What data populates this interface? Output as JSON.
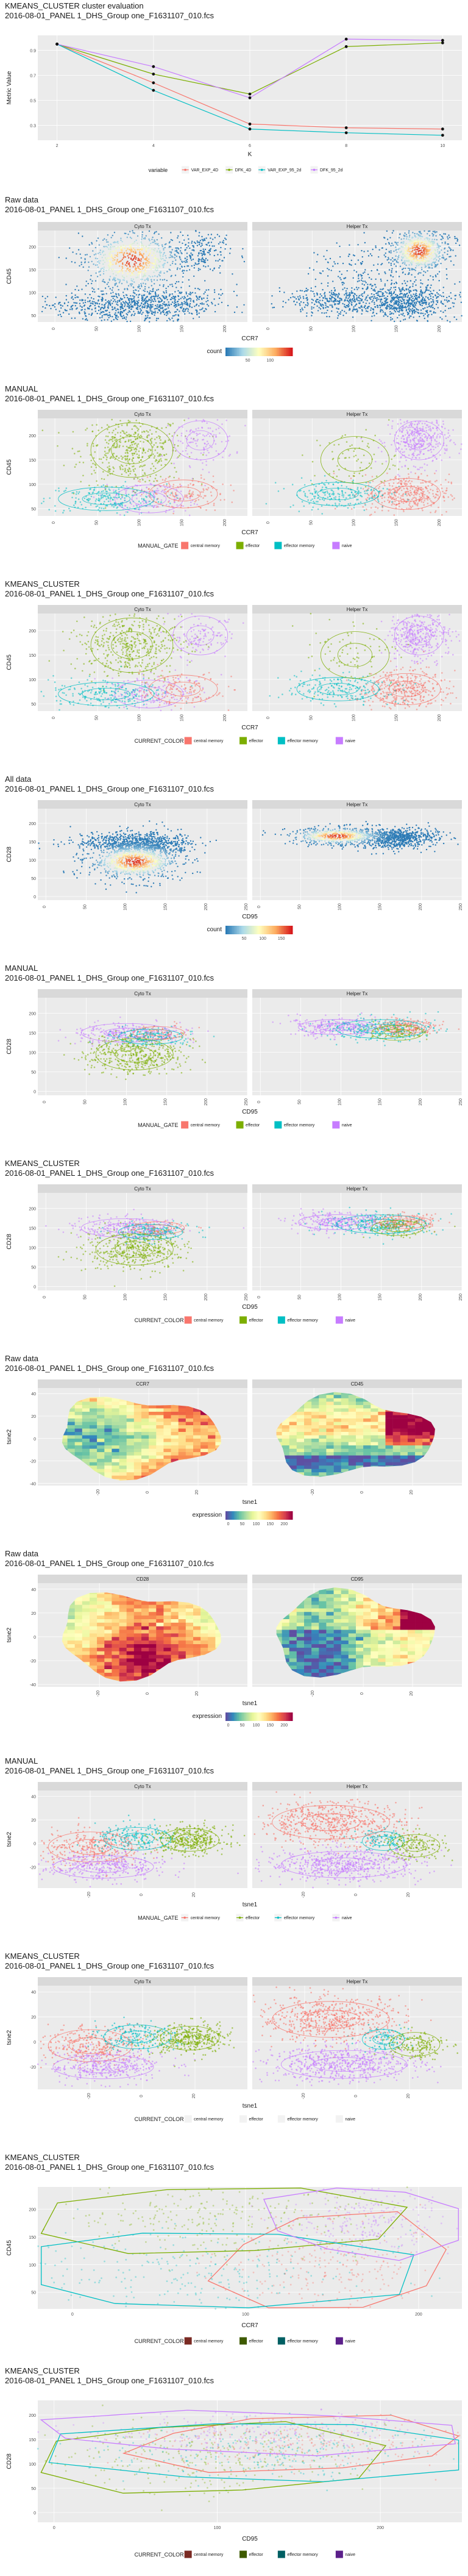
{
  "theme": {
    "panel_bg": "#ebebeb",
    "strip_bg": "#d9d9d9",
    "grid": "#ffffff",
    "text": "#1a1a1a",
    "axis_text": "#4d4d4d"
  },
  "palettes": {
    "groups4": [
      "#f8766d",
      "#7cae00",
      "#00bfc4",
      "#c77cff"
    ],
    "groups4_dark": [
      "#7a2a23",
      "#3e5a00",
      "#005f63",
      "#5b1f8a"
    ],
    "metrics": [
      "#f8766d",
      "#7cae00",
      "#00bfc4",
      "#c77cff"
    ],
    "count": [
      "#2c7bb6",
      "#abd9e9",
      "#ffffbf",
      "#fdae61",
      "#d7191c"
    ],
    "expression": [
      "#5e4fa2",
      "#3288bd",
      "#66c2a5",
      "#abdda4",
      "#e6f598",
      "#ffffbf",
      "#fee08b",
      "#fdae61",
      "#f46d43",
      "#d53e4f",
      "#9e0142"
    ]
  },
  "charts": [
    {
      "id": "kmeans-eval",
      "type": "line",
      "title": [
        "KMEANS_CLUSTER cluster evaluation",
        "2016-08-01_PANEL 1_DHS_Group one_F1631107_010.fcs"
      ],
      "xlabel": "K",
      "ylabel": "Metric Value",
      "xticks": [
        2,
        4,
        6,
        8,
        10
      ],
      "yticks": [
        0.3,
        0.5,
        0.7,
        0.9
      ],
      "xlim": [
        1.6,
        10.4
      ],
      "ylim": [
        0.18,
        1.02
      ],
      "legend": {
        "title": "variable",
        "labels": [
          "VAR_EXP_4D",
          "DFK_4D",
          "VAR_EXP_95_2d",
          "DFK_95_2d"
        ]
      },
      "x": [
        2,
        4,
        6,
        8,
        10
      ],
      "series": [
        {
          "name": "VAR_EXP_4D",
          "values": [
            0.95,
            0.64,
            0.31,
            0.28,
            0.27
          ]
        },
        {
          "name": "DFK_4D",
          "values": [
            0.95,
            0.71,
            0.55,
            0.93,
            0.96
          ]
        },
        {
          "name": "VAR_EXP_95_2d",
          "values": [
            0.95,
            0.58,
            0.27,
            0.24,
            0.22
          ]
        },
        {
          "name": "DFK_95_2d",
          "values": [
            0.95,
            0.77,
            0.52,
            0.99,
            0.98
          ]
        }
      ]
    },
    {
      "id": "raw-ccr7-cd45",
      "type": "scatter-density",
      "title": [
        "Raw data",
        "2016-08-01_PANEL 1_DHS_Group one_F1631107_010.fcs"
      ],
      "xlabel": "CCR7",
      "ylabel": "CD45",
      "facets": [
        "Cyto Tx",
        "Helper Tx"
      ],
      "xticks": [
        0,
        50,
        100,
        150,
        200
      ],
      "yticks": [
        50,
        100,
        150,
        200
      ],
      "xlim": [
        -20,
        225
      ],
      "ylim": [
        35,
        235
      ],
      "legend": {
        "type": "colorbar",
        "title": "count",
        "ticks": [
          50,
          100
        ],
        "range": [
          0,
          150
        ],
        "palette": "count"
      }
    },
    {
      "id": "manual-ccr7-cd45",
      "type": "scatter-groups",
      "title": [
        "MANUAL",
        "2016-08-01_PANEL 1_DHS_Group one_F1631107_010.fcs"
      ],
      "xlabel": "CCR7",
      "ylabel": "CD45",
      "facets": [
        "Cyto Tx",
        "Helper Tx"
      ],
      "xticks": [
        0,
        50,
        100,
        150,
        200
      ],
      "yticks": [
        50,
        100,
        150,
        200
      ],
      "xlim": [
        -20,
        225
      ],
      "ylim": [
        35,
        235
      ],
      "legend": {
        "title": "MANUAL_GATE",
        "labels": [
          "central memory",
          "effector",
          "effector memory",
          "naive"
        ]
      }
    },
    {
      "id": "kmeans-ccr7-cd45",
      "type": "scatter-groups",
      "title": [
        "KMEANS_CLUSTER",
        "2016-08-01_PANEL 1_DHS_Group one_F1631107_010.fcs"
      ],
      "xlabel": "CCR7",
      "ylabel": "CD45",
      "facets": [
        "Cyto Tx",
        "Helper Tx"
      ],
      "xticks": [
        0,
        50,
        100,
        150,
        200
      ],
      "yticks": [
        50,
        100,
        150,
        200
      ],
      "xlim": [
        -20,
        225
      ],
      "ylim": [
        35,
        235
      ],
      "legend": {
        "title": "CURRENT_COLOR",
        "labels": [
          "central memory",
          "effector",
          "effector memory",
          "naive"
        ]
      }
    },
    {
      "id": "all-cd95-cd28",
      "type": "scatter-density",
      "title": [
        "All data",
        "2016-08-01_PANEL 1_DHS_Group one_F1631107_010.fcs"
      ],
      "xlabel": "CD95",
      "ylabel": "CD28",
      "facets": [
        "Cyto Tx",
        "Helper Tx"
      ],
      "xticks": [
        0,
        50,
        100,
        150,
        200,
        250
      ],
      "yticks": [
        0,
        50,
        100,
        150,
        200
      ],
      "xlim": [
        -10,
        250
      ],
      "ylim": [
        -10,
        240
      ],
      "legend": {
        "type": "colorbar",
        "title": "count",
        "ticks": [
          50,
          100,
          150
        ],
        "range": [
          0,
          180
        ],
        "palette": "count"
      }
    },
    {
      "id": "manual-cd95-cd28",
      "type": "scatter-groups",
      "title": [
        "MANUAL",
        "2016-08-01_PANEL 1_DHS_Group one_F1631107_010.fcs"
      ],
      "xlabel": "CD95",
      "ylabel": "CD28",
      "facets": [
        "Cyto Tx",
        "Helper Tx"
      ],
      "xticks": [
        0,
        50,
        100,
        150,
        200,
        250
      ],
      "yticks": [
        0,
        50,
        100,
        150,
        200
      ],
      "xlim": [
        -10,
        250
      ],
      "ylim": [
        -10,
        240
      ],
      "legend": {
        "title": "MANUAL_GATE",
        "labels": [
          "central memory",
          "effector",
          "effector memory",
          "naive"
        ]
      }
    },
    {
      "id": "kmeans-cd95-cd28",
      "type": "scatter-groups",
      "title": [
        "KMEANS_CLUSTER",
        "2016-08-01_PANEL 1_DHS_Group one_F1631107_010.fcs"
      ],
      "xlabel": "CD95",
      "ylabel": "CD28",
      "facets": [
        "Cyto Tx",
        "Helper Tx"
      ],
      "xticks": [
        0,
        50,
        100,
        150,
        200,
        250
      ],
      "yticks": [
        0,
        50,
        100,
        150,
        200
      ],
      "xlim": [
        -10,
        250
      ],
      "ylim": [
        -10,
        240
      ],
      "legend": {
        "title": "CURRENT_COLOR",
        "labels": [
          "central memory",
          "effector",
          "effector memory",
          "naive"
        ]
      }
    },
    {
      "id": "raw-tsne-ccr7-cd45",
      "type": "tsne-expression",
      "title": [
        "Raw data",
        "2016-08-01_PANEL 1_DHS_Group one_F1631107_010.fcs"
      ],
      "xlabel": "tsne1",
      "ylabel": "tsne2",
      "facets": [
        "CCR7",
        "CD45"
      ],
      "xticks": [
        -20,
        0,
        20
      ],
      "yticks": [
        -40,
        -20,
        0,
        20,
        40
      ],
      "xlim": [
        -45,
        40
      ],
      "ylim": [
        -42,
        45
      ],
      "legend": {
        "type": "colorbar",
        "title": "expression",
        "ticks": [
          0,
          50,
          100,
          150,
          200
        ],
        "range": [
          -10,
          230
        ],
        "palette": "expression"
      }
    },
    {
      "id": "raw-tsne-cd28-cd95",
      "type": "tsne-expression",
      "title": [
        "Raw data",
        "2016-08-01_PANEL 1_DHS_Group one_F1631107_010.fcs"
      ],
      "xlabel": "tsne1",
      "ylabel": "tsne2",
      "facets": [
        "CD28",
        "CD95"
      ],
      "xticks": [
        -20,
        0,
        20
      ],
      "yticks": [
        -40,
        -20,
        0,
        20,
        40
      ],
      "xlim": [
        -45,
        40
      ],
      "ylim": [
        -42,
        45
      ],
      "legend": {
        "type": "colorbar",
        "title": "expression",
        "ticks": [
          0,
          50,
          100,
          150,
          200
        ],
        "range": [
          -10,
          230
        ],
        "palette": "expression"
      }
    },
    {
      "id": "manual-tsne",
      "type": "tsne-groups",
      "title": [
        "MANUAL",
        "2016-08-01_PANEL 1_DHS_Group one_F1631107_010.fcs"
      ],
      "xlabel": "tsne1",
      "ylabel": "tsne2",
      "facets": [
        "Cyto Tx",
        "Helper Tx"
      ],
      "xticks": [
        -20,
        0,
        20
      ],
      "yticks": [
        -20,
        0,
        20,
        40
      ],
      "xlim": [
        -40,
        40
      ],
      "ylim": [
        -38,
        45
      ],
      "legend": {
        "title": "MANUAL_GATE",
        "labels": [
          "central memory",
          "effector",
          "effector memory",
          "naive"
        ]
      }
    },
    {
      "id": "kmeans-tsne",
      "type": "tsne-groups",
      "title": [
        "KMEANS_CLUSTER",
        "2016-08-01_PANEL 1_DHS_Group one_F1631107_010.fcs"
      ],
      "xlabel": "tsne1",
      "ylabel": "tsne2",
      "facets": [
        "Cyto Tx",
        "Helper Tx"
      ],
      "xticks": [
        -20,
        0,
        20
      ],
      "yticks": [
        -20,
        0,
        20,
        40
      ],
      "xlim": [
        -40,
        40
      ],
      "ylim": [
        -38,
        45
      ],
      "legend": {
        "title": "CURRENT_COLOR",
        "labels": [
          "central memory",
          "effector",
          "effector memory",
          "naive"
        ]
      }
    },
    {
      "id": "kmeans-hull-ccr7-cd45",
      "type": "hull-overlay",
      "title": [
        "KMEANS_CLUSTER",
        "2016-08-01_PANEL 1_DHS_Group one_F1631107_010.fcs"
      ],
      "xlabel": "CCR7",
      "ylabel": "CD45",
      "xticks": [
        0,
        100,
        200
      ],
      "yticks": [
        50,
        100,
        150,
        200
      ],
      "xlim": [
        -20,
        225
      ],
      "ylim": [
        20,
        240
      ],
      "legend": {
        "title": "CURRENT_COLOR",
        "labels": [
          "central memory",
          "effector",
          "effector memory",
          "naive"
        ]
      }
    },
    {
      "id": "kmeans-hull-cd95-cd28",
      "type": "hull-overlay",
      "title": [
        "KMEANS_CLUSTER",
        "2016-08-01_PANEL 1_DHS_Group one_F1631107_010.fcs"
      ],
      "xlabel": "CD95",
      "ylabel": "CD28",
      "xticks": [
        0,
        100,
        200
      ],
      "yticks": [
        0,
        50,
        100,
        150,
        200
      ],
      "xlim": [
        -10,
        250
      ],
      "ylim": [
        -20,
        230
      ],
      "legend": {
        "title": "CURRENT_COLOR",
        "labels": [
          "central memory",
          "effector",
          "effector memory",
          "naive"
        ]
      }
    }
  ]
}
